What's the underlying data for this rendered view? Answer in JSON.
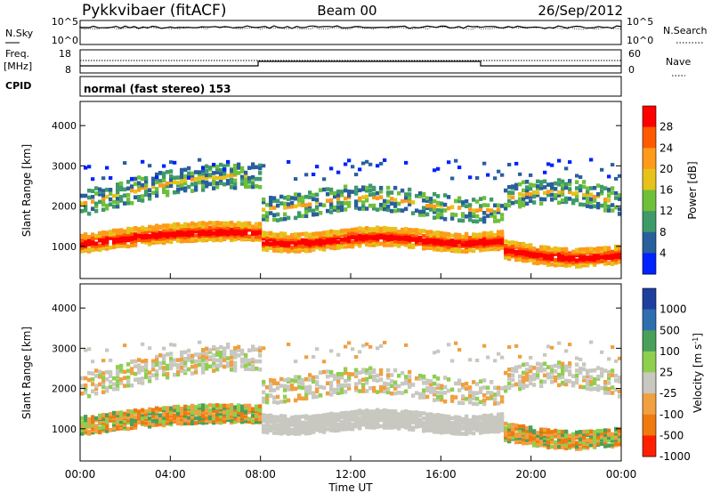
{
  "header": {
    "title": "Pykkvibaer (fitACF)",
    "beam": "Beam 00",
    "date": "26/Sep/2012"
  },
  "noise_panel": {
    "left_label": "N.Sky",
    "right_label": "N.Search",
    "left_ticks": [
      "10^5",
      "10^0"
    ],
    "right_ticks": [
      "10^5",
      "10^0"
    ]
  },
  "freq_panel": {
    "left_label_line1": "Freq.",
    "left_label_line2": "[MHz]",
    "right_label": "Nave",
    "left_ticks": [
      "18",
      "8"
    ],
    "right_ticks": [
      "60",
      "0"
    ]
  },
  "cpid": {
    "label": "CPID",
    "text": "normal (fast stereo) 153"
  },
  "chart_data": [
    {
      "type": "heatmap",
      "title": "",
      "ylabel": "Slant Range [km]",
      "xlabel": "Time UT",
      "ylim": [
        200,
        4600
      ],
      "yticks": [
        "4000",
        "3000",
        "2000",
        "1000"
      ],
      "xticks": [
        "00:00",
        "04:00",
        "08:00",
        "12:00",
        "16:00",
        "20:00",
        "00:00"
      ],
      "colorbar": {
        "label": "Power [dB]",
        "ticks": [
          "28",
          "24",
          "20",
          "16",
          "12",
          "8",
          "4"
        ],
        "colors": [
          "#ff0000",
          "#ff5a00",
          "#ff9a1a",
          "#e6c21a",
          "#6fbf3a",
          "#3f9a6a",
          "#2a5f9e",
          "#0022ff"
        ]
      },
      "bands": [
        {
          "name": "lower",
          "range_km": [
            900,
            1300
          ],
          "dominant": "red"
        },
        {
          "name": "upper",
          "range_km": [
            1500,
            3100
          ],
          "dominant": "green"
        }
      ]
    },
    {
      "type": "heatmap",
      "title": "",
      "ylabel": "Slant Range [km]",
      "xlabel": "Time UT",
      "ylim": [
        200,
        4600
      ],
      "yticks": [
        "4000",
        "3000",
        "2000",
        "1000"
      ],
      "xticks": [
        "00:00",
        "04:00",
        "08:00",
        "12:00",
        "16:00",
        "20:00",
        "00:00"
      ],
      "colorbar": {
        "label": "Velocity [m s^-1]",
        "ticks": [
          "1000",
          "500",
          "100",
          "25",
          "-25",
          "-100",
          "-500",
          "-1000"
        ],
        "colors": [
          "#1f3f9f",
          "#2f6fb0",
          "#4aa05a",
          "#8fcf50",
          "#c8c8c0",
          "#f0a040",
          "#f07a10",
          "#ff2000"
        ]
      }
    }
  ],
  "axis": {
    "xlabel": "Time UT"
  }
}
